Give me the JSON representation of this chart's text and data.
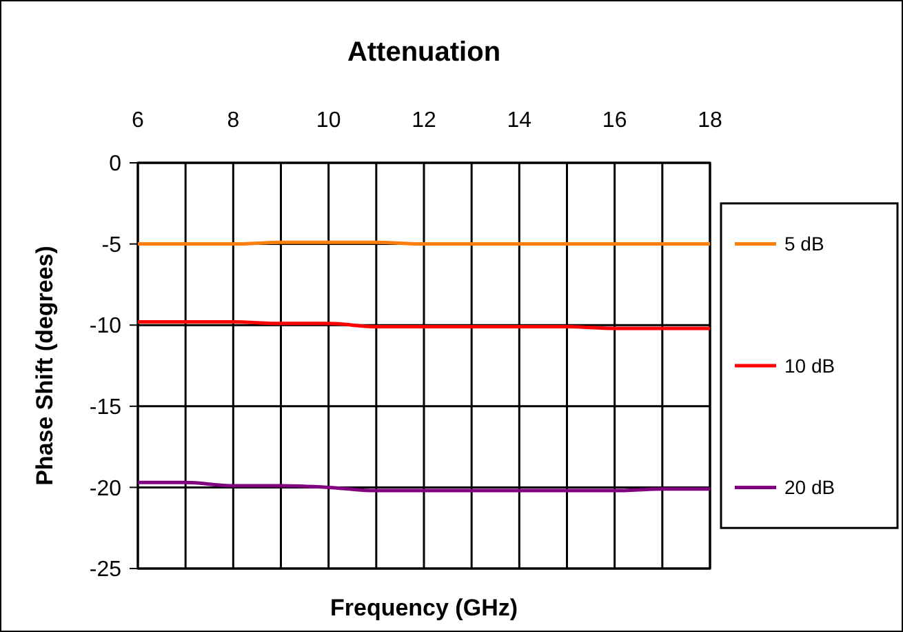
{
  "chart_data": {
    "type": "line",
    "title": "Attenuation",
    "xlabel": "Frequency (GHz)",
    "ylabel": "Phase Shift (degrees)",
    "x": [
      6,
      7,
      8,
      9,
      10,
      11,
      12,
      13,
      14,
      15,
      16,
      17,
      18
    ],
    "xlim": [
      6,
      18
    ],
    "xticks": [
      6,
      {
        "value": 7,
        "label": null
      },
      8,
      {
        "value": 9,
        "label": null
      },
      10,
      {
        "value": 11,
        "label": null
      },
      12,
      {
        "value": 13,
        "label": null
      },
      14,
      {
        "value": 15,
        "label": null
      },
      16,
      {
        "value": 17,
        "label": null
      },
      18
    ],
    "ylim": [
      -25,
      0
    ],
    "yticks": [
      -25,
      -20,
      -15,
      -10,
      -5,
      0
    ],
    "grid": true,
    "legend": "right",
    "marker": "none",
    "line_style": "solid",
    "series": [
      {
        "name": "5 dB",
        "color": "#ff7f0e",
        "values": [
          -5,
          -5,
          -5,
          -4.9,
          -4.9,
          -4.9,
          -5,
          -5,
          -5,
          -5,
          -5,
          -5,
          -5
        ]
      },
      {
        "name": "10 dB",
        "color": "#ff0000",
        "values": [
          -9.8,
          -9.8,
          -9.8,
          -9.9,
          -9.9,
          -10.1,
          -10.1,
          -10.1,
          -10.1,
          -10.1,
          -10.2,
          -10.2,
          -10.2
        ]
      },
      {
        "name": "20 dB",
        "color": "#800080",
        "values": [
          -19.7,
          -19.7,
          -19.9,
          -19.9,
          -20,
          -20.2,
          -20.2,
          -20.2,
          -20.2,
          -20.2,
          -20.2,
          -20.1,
          -20.1
        ]
      }
    ]
  }
}
